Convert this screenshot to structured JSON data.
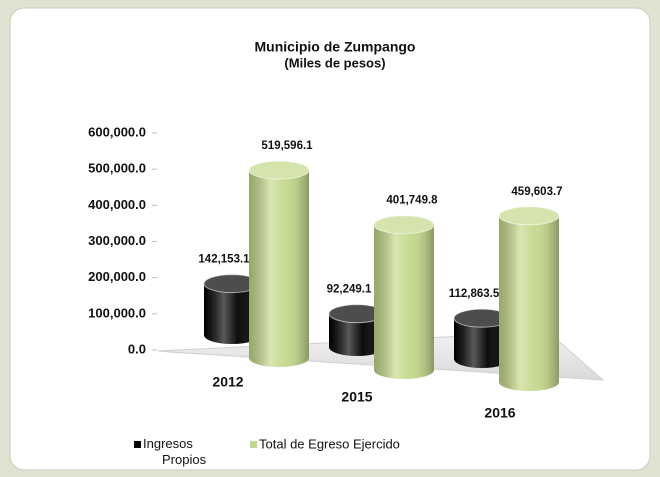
{
  "chart_data": {
    "type": "cylinder",
    "title": "Municipio de Zumpango",
    "subtitle": "(Miles de pesos)",
    "categories": [
      "2012",
      "2015",
      "2016"
    ],
    "series": [
      {
        "name": "Ingresos Propios",
        "color": "#6f a5de",
        "values": [
          142153.1,
          92249.1,
          112863.5
        ],
        "value_labels": [
          "142,153.1",
          "92,249.1",
          "112,863.5"
        ]
      },
      {
        "name": "Total de Egreso Ejercido",
        "color": "#c3d88a",
        "values": [
          519596.1,
          401749.8,
          459603.7
        ],
        "value_labels": [
          "519,596.1",
          "401,749.8",
          "459,603.7"
        ]
      }
    ],
    "ylim": [
      0,
      600000
    ],
    "yticks": [
      {
        "value": 0,
        "label": "0.0"
      },
      {
        "value": 100000,
        "label": "100,000.0"
      },
      {
        "value": 200000,
        "label": "200,000.0"
      },
      {
        "value": 300000,
        "label": "300,000.0"
      },
      {
        "value": 400000,
        "label": "400,000.0"
      },
      {
        "value": 500000,
        "label": "500,000.0"
      },
      {
        "value": 600000,
        "label": "600,000.0"
      }
    ],
    "grid": false
  }
}
